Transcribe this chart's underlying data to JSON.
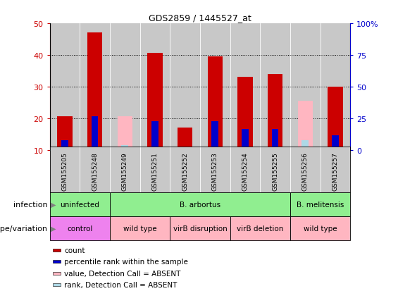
{
  "title": "GDS2859 / 1445527_at",
  "samples": [
    "GSM155205",
    "GSM155248",
    "GSM155249",
    "GSM155251",
    "GSM155252",
    "GSM155253",
    "GSM155254",
    "GSM155255",
    "GSM155256",
    "GSM155257"
  ],
  "count_values": [
    20.5,
    47.0,
    null,
    40.5,
    17.0,
    39.5,
    33.0,
    34.0,
    null,
    30.0
  ],
  "rank_values": [
    13.0,
    20.5,
    null,
    19.0,
    null,
    19.0,
    16.5,
    16.5,
    null,
    14.5
  ],
  "absent_value_values": [
    null,
    null,
    20.5,
    null,
    null,
    null,
    null,
    null,
    25.5,
    null
  ],
  "absent_rank_values": [
    null,
    null,
    11.5,
    null,
    null,
    null,
    null,
    null,
    13.0,
    null
  ],
  "ylim_left": [
    10,
    50
  ],
  "ylim_right": [
    0,
    100
  ],
  "yticks_left": [
    10,
    20,
    30,
    40,
    50
  ],
  "yticks_right": [
    0,
    25,
    50,
    75,
    100
  ],
  "ytick_labels_left": [
    "10",
    "20",
    "30",
    "40",
    "50"
  ],
  "ytick_labels_right": [
    "0",
    "25",
    "50",
    "75",
    "100%"
  ],
  "infection_groups": [
    {
      "label": "uninfected",
      "start": 0,
      "end": 2,
      "color": "#90EE90"
    },
    {
      "label": "B. arbortus",
      "start": 2,
      "end": 8,
      "color": "#90EE90"
    },
    {
      "label": "B. melitensis",
      "start": 8,
      "end": 10,
      "color": "#90EE90"
    }
  ],
  "genotype_groups": [
    {
      "label": "control",
      "start": 0,
      "end": 2,
      "color": "#EE82EE"
    },
    {
      "label": "wild type",
      "start": 2,
      "end": 4,
      "color": "#FFB6C1"
    },
    {
      "label": "virB disruption",
      "start": 4,
      "end": 6,
      "color": "#FFB6C1"
    },
    {
      "label": "virB deletion",
      "start": 6,
      "end": 8,
      "color": "#FFB6C1"
    },
    {
      "label": "wild type",
      "start": 8,
      "end": 10,
      "color": "#FFB6C1"
    }
  ],
  "count_color": "#CC0000",
  "rank_color": "#0000CC",
  "absent_value_color": "#FFB6C1",
  "absent_rank_color": "#ADD8E6",
  "bar_area_bg": "#C8C8C8",
  "left_axis_color": "#CC0000",
  "right_axis_color": "#0000CC",
  "legend_items": [
    {
      "color": "#CC0000",
      "label": "count"
    },
    {
      "color": "#0000CC",
      "label": "percentile rank within the sample"
    },
    {
      "color": "#FFB6C1",
      "label": "value, Detection Call = ABSENT"
    },
    {
      "color": "#ADD8E6",
      "label": "rank, Detection Call = ABSENT"
    }
  ]
}
